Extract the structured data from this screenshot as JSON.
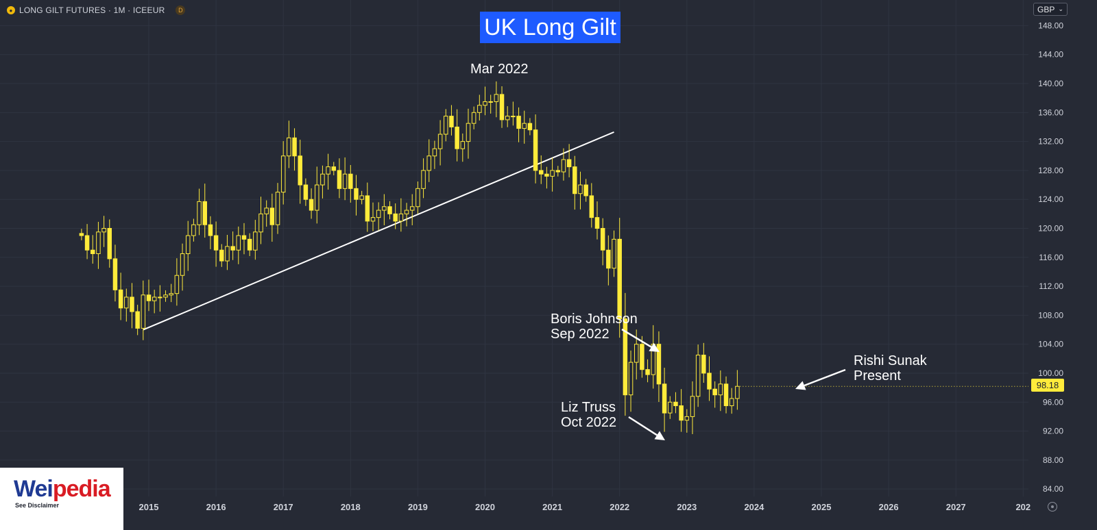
{
  "header": {
    "symbol": "LONG GILT FUTURES · 1M · ICEEUR",
    "symbol_icon": "gilt-coin-icon",
    "delay_badge": "D",
    "currency": "GBP",
    "currency_chevron": "chevron-down-icon"
  },
  "chart_data": {
    "type": "candlestick",
    "title": "UK Long Gilt",
    "x_labels": [
      "2015",
      "2016",
      "2017",
      "2018",
      "2019",
      "2020",
      "2021",
      "2022",
      "2023",
      "2024",
      "2025",
      "2026",
      "2027",
      "202"
    ],
    "y_ticks": [
      "148.00",
      "144.00",
      "140.00",
      "136.00",
      "132.00",
      "128.00",
      "124.00",
      "120.00",
      "116.00",
      "112.00",
      "108.00",
      "104.00",
      "100.00",
      "96.00",
      "92.00",
      "88.00",
      "84.00"
    ],
    "ylim": [
      82.5,
      150.5
    ],
    "last_price": "98.18",
    "annotations": [
      {
        "text": "Mar 2022",
        "lines": [
          "Mar 2022"
        ]
      },
      {
        "text": "Boris Johnson Sep 2022",
        "lines": [
          "Boris Johnson",
          "Sep 2022"
        ]
      },
      {
        "text": "Liz Truss Oct 2022",
        "lines": [
          "Liz Truss",
          "Oct 2022"
        ]
      },
      {
        "text": "Rishi Sunak Present",
        "lines": [
          "Rishi Sunak",
          "Present"
        ]
      }
    ],
    "trendline": {
      "from": {
        "date": "2014-12",
        "value": 106.0
      },
      "to": {
        "date": "2021-12",
        "value": 133.3
      }
    },
    "candles_monthly_close": [
      119.0,
      117.0,
      116.5,
      119.5,
      120.0,
      115.8,
      111.5,
      109.0,
      110.5,
      108.5,
      106.2,
      110.8,
      110.0,
      110.5,
      110.5,
      110.8,
      111.0,
      113.5,
      116.5,
      119.0,
      120.5,
      123.7,
      120.5,
      119.0,
      117.0,
      115.5,
      117.5,
      117.0,
      119.0,
      118.5,
      117.0,
      119.5,
      122.0,
      122.8,
      120.5,
      125.0,
      130.0,
      132.5,
      130.0,
      126.0,
      124.0,
      122.5,
      126.0,
      127.5,
      128.5,
      128.0,
      125.5,
      127.5,
      125.5,
      124.0,
      124.5,
      121.0,
      121.5,
      122.5,
      123.0,
      122.0,
      121.0,
      122.0,
      122.5,
      123.0,
      125.5,
      128.0,
      130.0,
      131.0,
      133.0,
      135.5,
      134.0,
      131.0,
      132.0,
      134.5,
      136.0,
      137.0,
      137.5,
      137.5,
      138.5,
      135.0,
      135.5,
      135.5,
      133.8,
      134.5,
      133.6,
      128.0,
      127.5,
      127.2,
      128.0,
      127.8,
      129.5,
      128.5,
      124.8,
      126.0,
      124.5,
      121.5,
      120.0,
      117.0,
      114.5,
      118.5,
      107.5,
      97.0,
      101.5,
      104.0,
      100.5,
      99.8,
      104.0,
      98.5,
      94.5,
      96.0,
      95.5,
      93.5,
      94.0,
      96.8,
      102.5,
      100.0,
      97.8,
      97.0,
      98.5,
      95.5,
      96.5,
      98.18
    ]
  },
  "branding": {
    "logo_primary": "Wei",
    "logo_secondary": "pedia",
    "disclaimer": "See Disclaimer"
  },
  "icons": {
    "settings": "gear-icon"
  },
  "colors": {
    "background": "#262a35",
    "grid": "#2f3441",
    "candle": "#ffeb3b",
    "candle_outline": "#ffeb3b",
    "trendline": "#ffffff",
    "title_bg": "#1e5bff",
    "axis_text": "#d1d4dc"
  }
}
